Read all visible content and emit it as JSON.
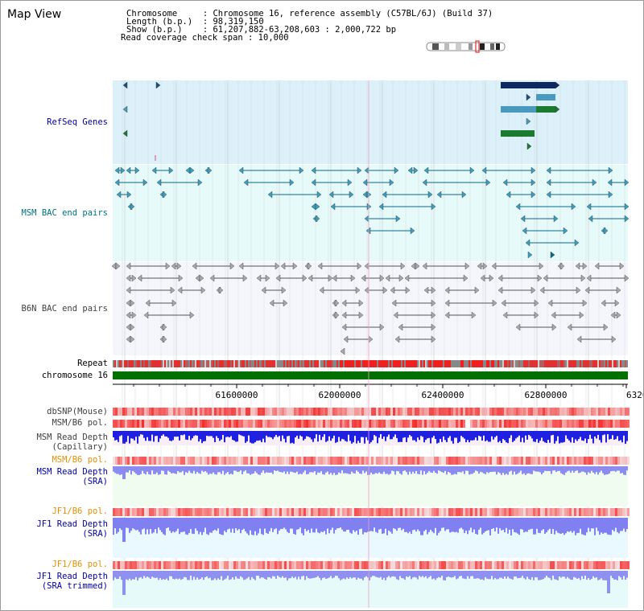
{
  "header": {
    "title": "Map View",
    "lines": [
      "Chromosome     : Chromosome 16, reference assembly (C57BL/6J) (Build 37)",
      "Length (b.p.)  : 98,319,150",
      "Show (b.p.)    : 61,207,882-63,208,603 : 2,000,722 bp",
      "Read coverage check span : 10,000"
    ]
  },
  "tracks": {
    "refseq": "RefSeq Genes",
    "msm_bac": "MSM BAC end pairs",
    "b6n_bac": "B6N BAC end pairs",
    "repeat": "Repeat",
    "chromosome": "chromosome 16",
    "dbsnp": "dbSNP(Mouse)",
    "msm_b6_pol_1": "MSM/B6 pol.",
    "msm_depth_cap": "MSM Read Depth\n(Capillary)",
    "msm_b6_pol_2": "MSM/B6 pol.",
    "msm_depth_sra": "MSM Read Depth\n(SRA)",
    "jf1_b6_pol_1": "JF1/B6 pol.",
    "jf1_depth_sra": "JF1 Read Depth\n(SRA)",
    "jf1_b6_pol_2": "JF1/B6 pol.",
    "jf1_depth_trim": "JF1 Read Depth\n(SRA trimmed)"
  },
  "axis": {
    "ticks": [
      "61600000",
      "62000000",
      "62400000",
      "62800000",
      "6320"
    ]
  },
  "colors": {
    "refseq_bg": "#dcf0fa",
    "msm_bac_bg": "#e6fafa",
    "b6n_bac_bg": "#f5f5fc",
    "track_label_blue": "#0000a0",
    "track_label_teal": "#007080",
    "track_label_orange": "#e09000",
    "track_label_gray": "#404040",
    "chromosome_green": "#007000",
    "depth_blue": "#3030e0",
    "depth_light": "#8c8cf0",
    "pol_red": "#f06060"
  }
}
